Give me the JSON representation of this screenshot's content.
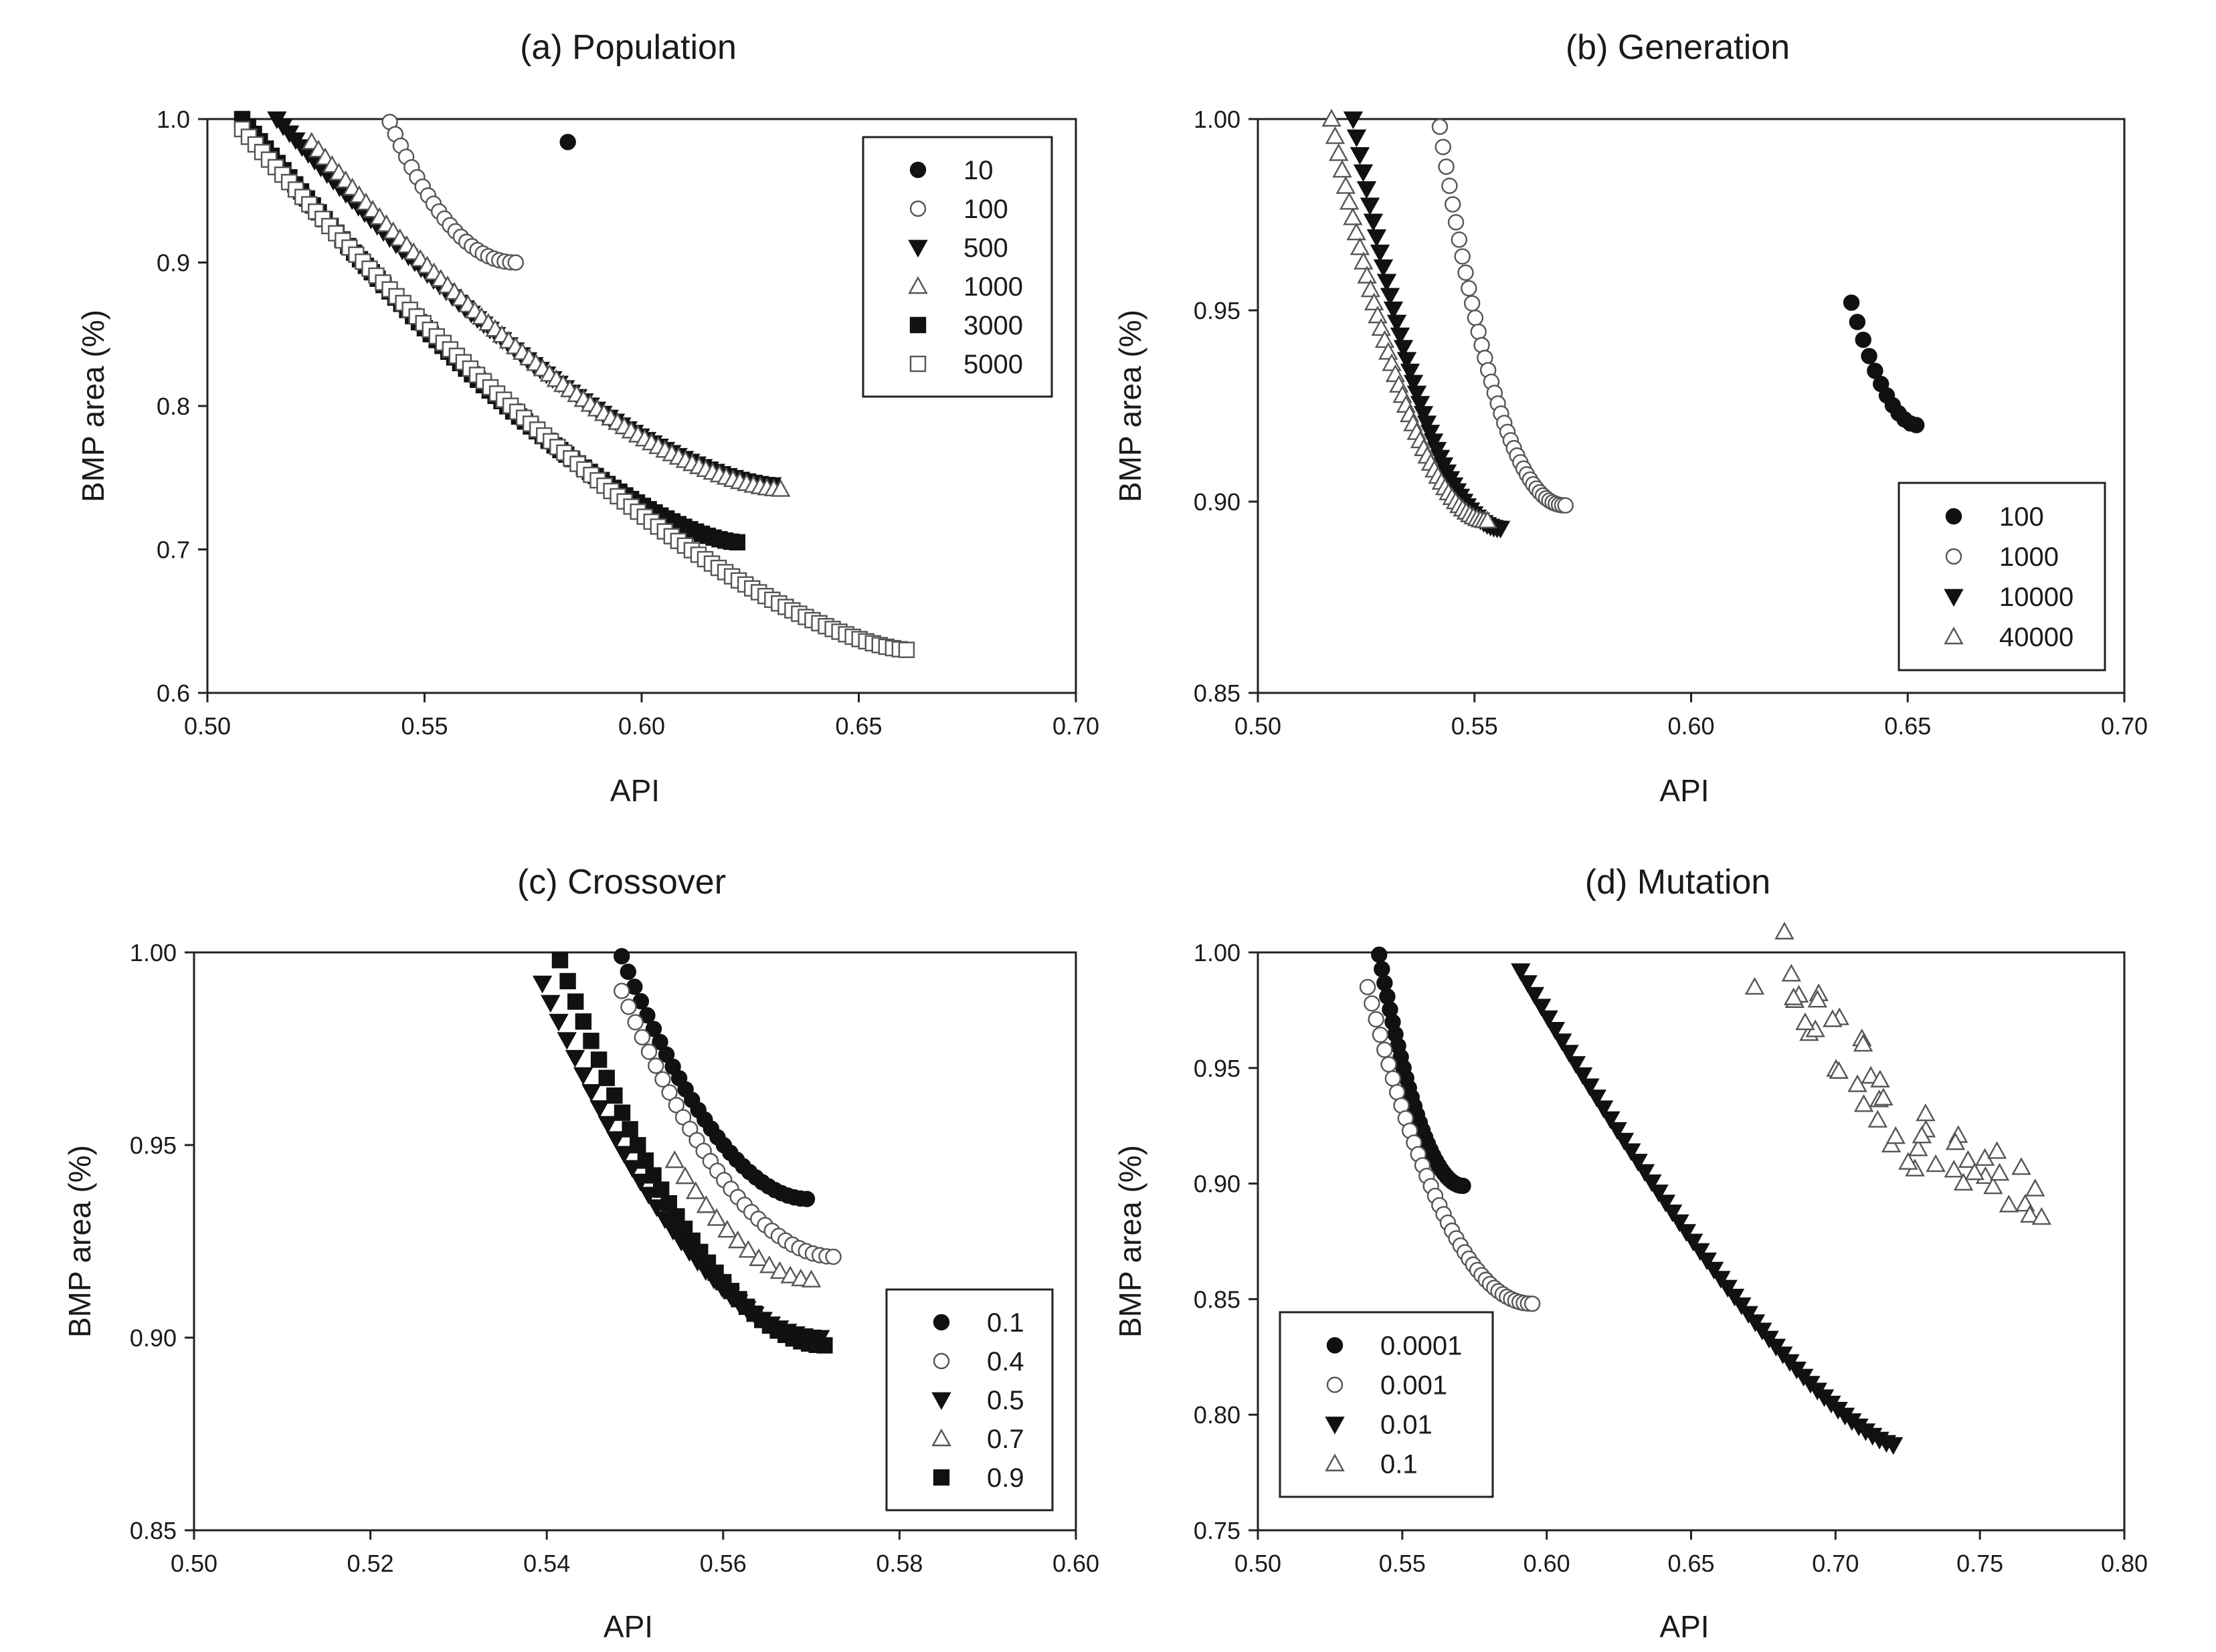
{
  "chart_data": [
    {
      "type": "scatter",
      "title": "(a) Population",
      "xlabel": "API",
      "ylabel": "BMP area (%)",
      "xlim": [
        0.5,
        0.7
      ],
      "ylim": [
        0.6,
        1.0
      ],
      "xticks": [
        "0.50",
        "0.55",
        "0.60",
        "0.65",
        "0.70"
      ],
      "yticks": [
        "0.6",
        "0.7",
        "0.8",
        "0.9",
        "1.0"
      ],
      "legend_position": "top-right",
      "series": [
        {
          "name": "10",
          "marker": "circle-filled",
          "points": [
            [
              0.583,
              0.984
            ]
          ]
        },
        {
          "name": "100",
          "marker": "circle-open",
          "x_range": [
            0.542,
            0.571
          ],
          "y_range": [
            0.998,
            0.9
          ],
          "shape": 1.3,
          "n": 24
        },
        {
          "name": "500",
          "marker": "triangle-down-filled",
          "x_range": [
            0.516,
            0.63
          ],
          "y_range": [
            1.0,
            0.745
          ],
          "shape": 0.65,
          "n": 80
        },
        {
          "name": "1000",
          "marker": "triangle-up-open",
          "x_range": [
            0.524,
            0.632
          ],
          "y_range": [
            0.984,
            0.742
          ],
          "shape": 0.7,
          "n": 70
        },
        {
          "name": "3000",
          "marker": "square-filled",
          "x_range": [
            0.508,
            0.622
          ],
          "y_range": [
            1.0,
            0.705
          ],
          "shape": 0.6,
          "n": 85
        },
        {
          "name": "5000",
          "marker": "square-open",
          "x_range": [
            0.508,
            0.661
          ],
          "y_range": [
            0.993,
            0.63
          ],
          "shape": 0.58,
          "n": 100
        }
      ]
    },
    {
      "type": "scatter",
      "title": "(b) Generation",
      "xlabel": "API",
      "ylabel": "BMP area (%)",
      "xlim": [
        0.5,
        0.7
      ],
      "ylim": [
        0.85,
        1.0
      ],
      "xticks": [
        "0.50",
        "0.55",
        "0.60",
        "0.65",
        "0.70"
      ],
      "yticks": [
        "0.85",
        "0.90",
        "0.95",
        "1.00"
      ],
      "legend_position": "bottom-right",
      "series": [
        {
          "name": "100",
          "marker": "circle-filled",
          "x_range": [
            0.637,
            0.652
          ],
          "y_range": [
            0.952,
            0.92
          ],
          "shape": 1.0,
          "n": 12
        },
        {
          "name": "1000",
          "marker": "circle-open",
          "x_range": [
            0.542,
            0.571
          ],
          "y_range": [
            0.998,
            0.899
          ],
          "shape": 1.4,
          "n": 40
        },
        {
          "name": "10000",
          "marker": "triangle-down-filled",
          "x_range": [
            0.522,
            0.556
          ],
          "y_range": [
            1.0,
            0.893
          ],
          "shape": 1.2,
          "n": 45
        },
        {
          "name": "40000",
          "marker": "triangle-up-open",
          "x_range": [
            0.517,
            0.553
          ],
          "y_range": [
            1.0,
            0.895
          ],
          "shape": 1.15,
          "n": 45
        }
      ]
    },
    {
      "type": "scatter",
      "title": "(c) Crossover",
      "xlabel": "API",
      "ylabel": "BMP area (%)",
      "xlim": [
        0.5,
        0.6
      ],
      "ylim": [
        0.85,
        1.0
      ],
      "xticks": [
        "0.50",
        "0.52",
        "0.54",
        "0.56",
        "0.58",
        "0.60"
      ],
      "yticks": [
        "0.85",
        "0.90",
        "0.95",
        "1.00"
      ],
      "legend_position": "bottom-right",
      "series": [
        {
          "name": "0.1",
          "marker": "circle-filled",
          "x_range": [
            0.5485,
            0.5695
          ],
          "y_range": [
            0.999,
            0.936
          ],
          "shape": 1.1,
          "n": 30
        },
        {
          "name": "0.4",
          "marker": "circle-open",
          "x_range": [
            0.5485,
            0.5725
          ],
          "y_range": [
            0.99,
            0.921
          ],
          "shape": 1.1,
          "n": 32
        },
        {
          "name": "0.5",
          "marker": "triangle-down-filled",
          "x_range": [
            0.5395,
            0.571
          ],
          "y_range": [
            0.992,
            0.9
          ],
          "shape": 1.1,
          "n": 35
        },
        {
          "name": "0.7",
          "marker": "triangle-up-open",
          "x_range": [
            0.5545,
            0.57
          ],
          "y_range": [
            0.946,
            0.915
          ],
          "shape": 1.0,
          "n": 14
        },
        {
          "name": "0.9",
          "marker": "square-filled",
          "x_range": [
            0.5415,
            0.5715
          ],
          "y_range": [
            0.998,
            0.898
          ],
          "shape": 1.1,
          "n": 35
        }
      ]
    },
    {
      "type": "scatter",
      "title": "(d) Mutation",
      "xlabel": "API",
      "ylabel": "BMP area (%)",
      "xlim": [
        0.5,
        0.8
      ],
      "ylim": [
        0.75,
        1.0
      ],
      "xticks": [
        "0.50",
        "0.55",
        "0.60",
        "0.65",
        "0.70",
        "0.75",
        "0.80"
      ],
      "yticks": [
        "0.75",
        "0.80",
        "0.85",
        "0.90",
        "0.95",
        "1.00"
      ],
      "legend_position": "bottom-left",
      "series": [
        {
          "name": "0.0001",
          "marker": "circle-filled",
          "x_range": [
            0.542,
            0.571
          ],
          "y_range": [
            0.999,
            0.899
          ],
          "shape": 1.2,
          "n": 32
        },
        {
          "name": "0.001",
          "marker": "circle-open",
          "x_range": [
            0.538,
            0.595
          ],
          "y_range": [
            0.985,
            0.848
          ],
          "shape": 1.3,
          "n": 40
        },
        {
          "name": "0.01",
          "marker": "triangle-down-filled",
          "x_range": [
            0.591,
            0.72
          ],
          "y_range": [
            0.992,
            0.787
          ],
          "shape": 0.45,
          "n": 55
        },
        {
          "name": "0.1",
          "marker": "triangle-up-open",
          "x_range": [
            0.678,
            0.768
          ],
          "y_range": [
            1.0,
            0.897
          ],
          "shape": 1.0,
          "n": 50,
          "jitter": true
        }
      ]
    }
  ]
}
